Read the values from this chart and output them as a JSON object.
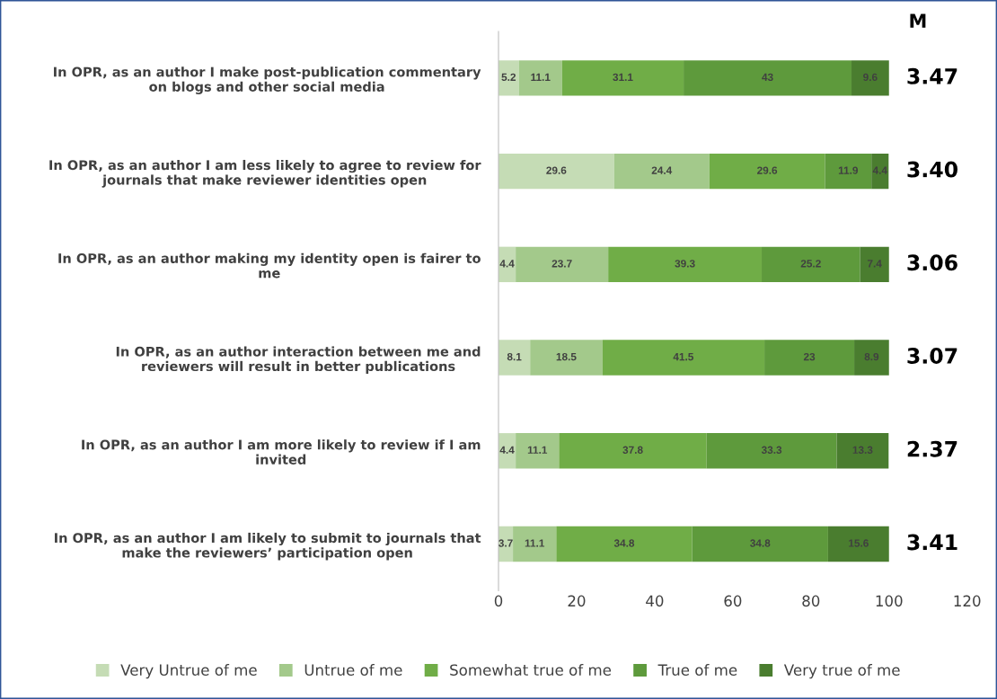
{
  "chart_data": {
    "type": "bar",
    "orientation": "horizontal",
    "stacked": true,
    "data_labels": true,
    "grid": false,
    "legend": "bottom",
    "categories": [
      "In OPR, as an author I make post-publication commentary\non blogs and other social media",
      "In OPR, as an author I am less likely to agree to review for\njournals that make reviewer identities open",
      "In OPR, as an author making my identity open is fairer to\nme",
      "In OPR, as an author interaction between me and\nreviewers will result in better publications",
      "In OPR, as an author I am more likely to review if I am\ninvited",
      "In OPR, as an author I am likely to submit to journals that\nmake the reviewers’ participation open"
    ],
    "series": [
      {
        "name": "Very Untrue of me",
        "color": "#c5dcb5",
        "values": [
          5.2,
          29.6,
          4.4,
          8.1,
          4.4,
          3.7
        ]
      },
      {
        "name": "Untrue of me",
        "color": "#a3c98b",
        "values": [
          11.1,
          24.4,
          23.7,
          18.5,
          11.1,
          11.1
        ]
      },
      {
        "name": "Somewhat true of me",
        "color": "#70ad47",
        "values": [
          31.1,
          29.6,
          39.3,
          41.5,
          37.8,
          34.8
        ]
      },
      {
        "name": "True of me",
        "color": "#5e9a3c",
        "values": [
          43,
          11.9,
          25.2,
          23,
          33.3,
          34.8
        ]
      },
      {
        "name": "Very true of me",
        "color": "#4a7d2f",
        "values": [
          9.6,
          4.4,
          7.4,
          8.9,
          13.3,
          15.6
        ]
      }
    ],
    "xlim": [
      0,
      120
    ],
    "xticks": [
      0,
      20,
      40,
      60,
      80,
      100,
      120
    ],
    "annotations": [
      "M",
      "3.47",
      "3.40",
      "3.06",
      "3.07",
      "2.37",
      "3.41"
    ]
  }
}
